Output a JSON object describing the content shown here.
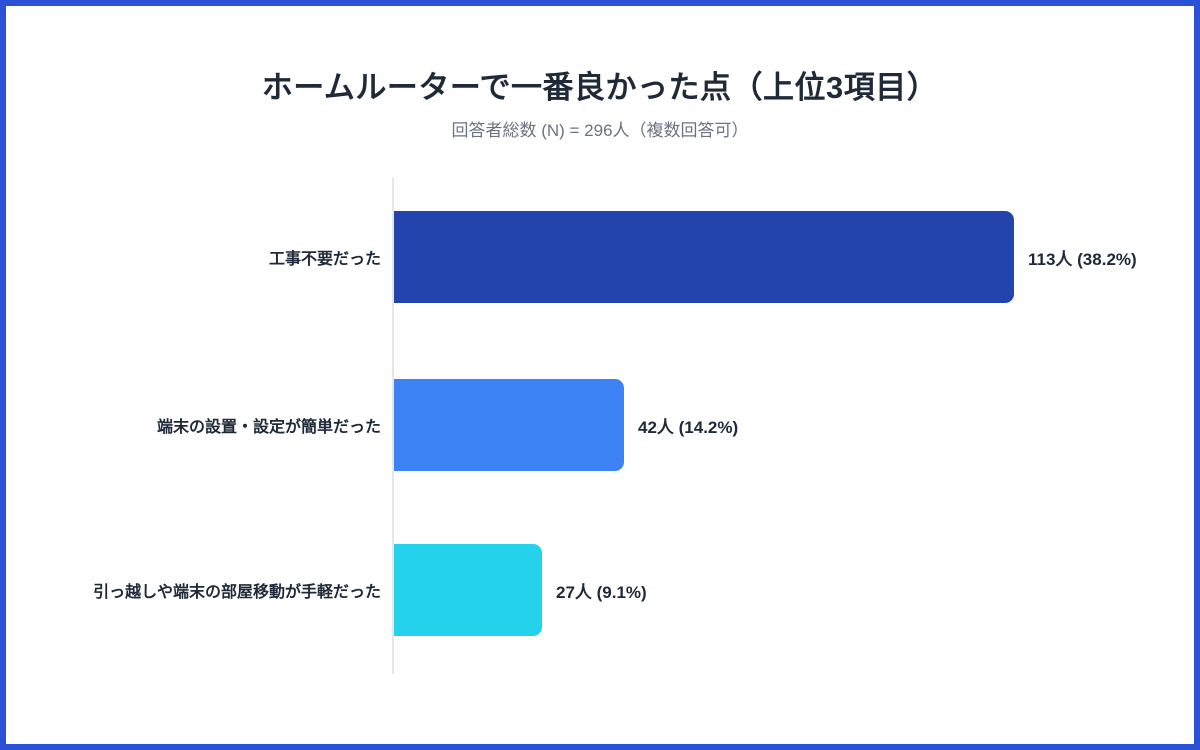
{
  "frame": {
    "border_color": "#2b52d6",
    "background_color": "#ffffff"
  },
  "chart_data": {
    "type": "bar",
    "orientation": "horizontal",
    "title": "ホームルーターで一番良かった点（上位3項目）",
    "subtitle": "回答者総数 (N) = 296人（複数回答可）",
    "respondents_total": 296,
    "unit": "人",
    "grid": false,
    "legend": false,
    "xlim": [
      0,
      113
    ],
    "axis_line_color": "#e4e7ec",
    "text_color": "#1f2937",
    "subtitle_color": "#6b7280",
    "categories": [
      "工事不要だった",
      "端末の設置・設定が簡単だった",
      "引っ越しや端末の部屋移動が手軽だった"
    ],
    "values": [
      113,
      42,
      27
    ],
    "percentages": [
      38.2,
      14.2,
      9.1
    ],
    "bars": [
      {
        "label": "工事不要だった",
        "value": 113,
        "percent": 38.2,
        "value_label": "113人 (38.2%)",
        "color": "#2244ac"
      },
      {
        "label": "端末の設置・設定が簡単だった",
        "value": 42,
        "percent": 14.2,
        "value_label": "42人 (14.2%)",
        "color": "#3d82f4"
      },
      {
        "label": "引っ越しや端末の部屋移動が手軽だった",
        "value": 27,
        "percent": 9.1,
        "value_label": "27人 (9.1%)",
        "color": "#25d2ec"
      }
    ]
  }
}
